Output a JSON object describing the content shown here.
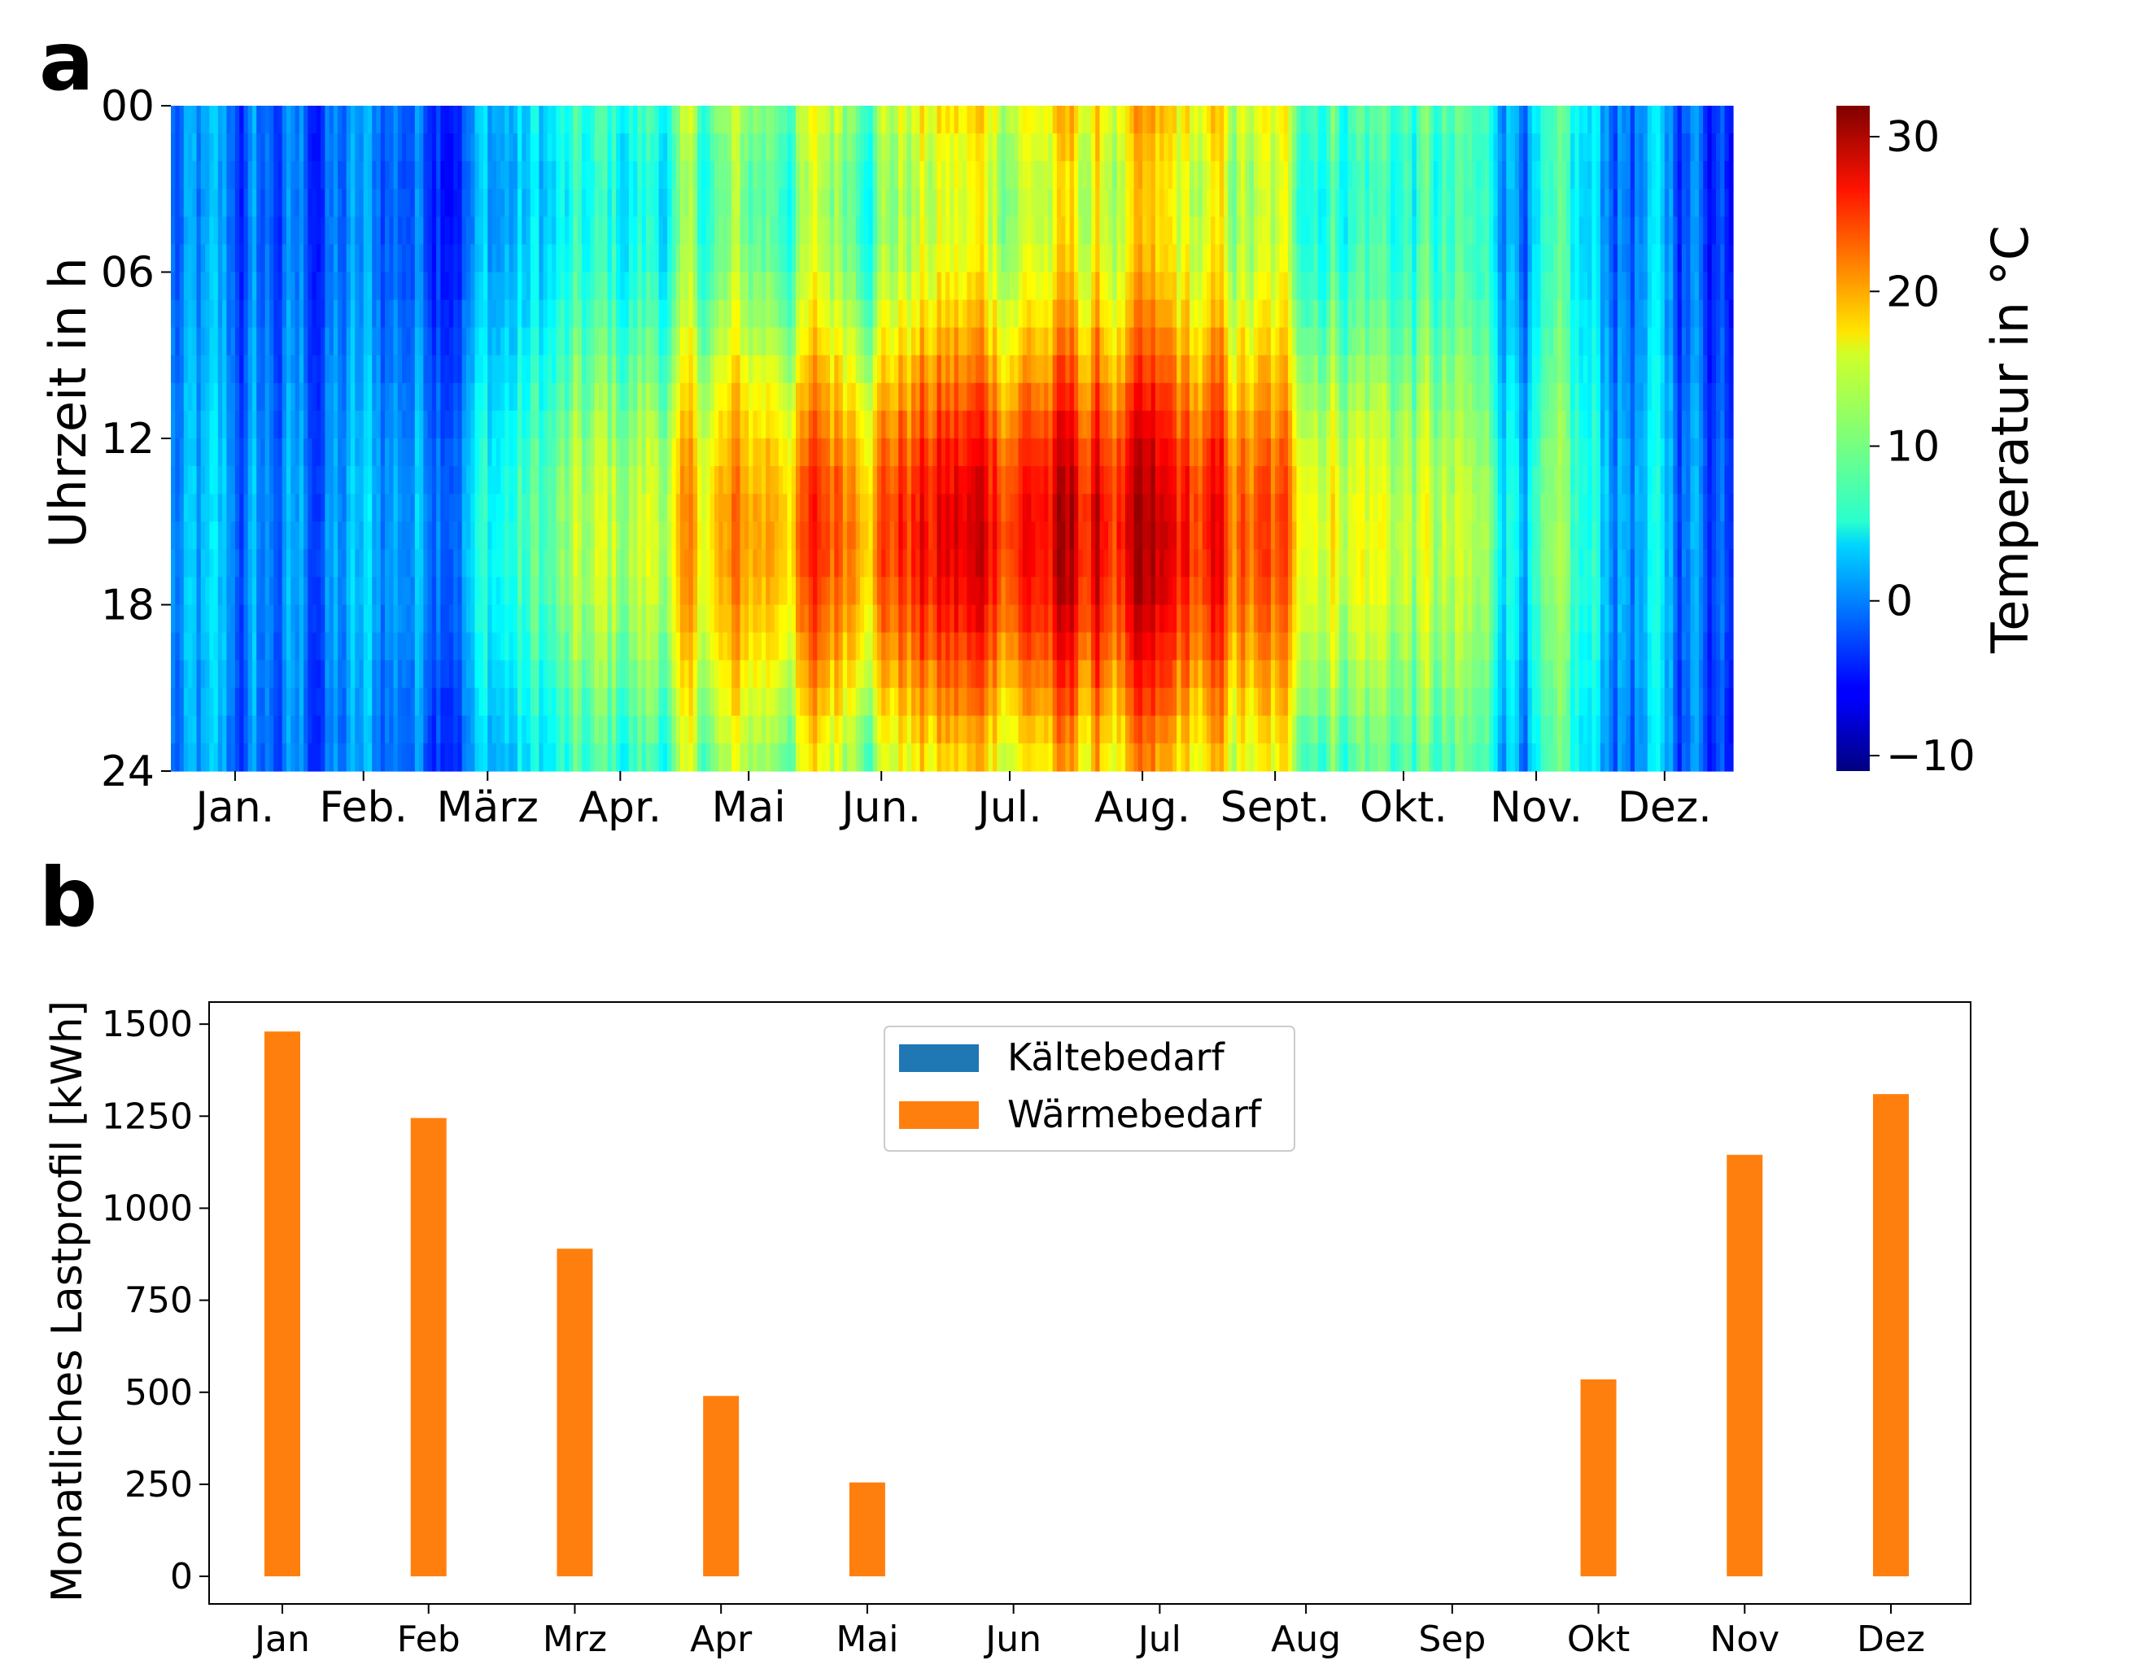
{
  "chart_data": [
    {
      "type": "heatmap",
      "panel_label": "a",
      "ylabel": "Uhrzeit in h",
      "colorbar_label": "Temperatur in °C",
      "colormap": "jet",
      "colorbar_range": [
        -11,
        32
      ],
      "colorbar_ticks": [
        "−10",
        "0",
        "10",
        "20",
        "30"
      ],
      "colorbar_tick_values": [
        -10,
        0,
        10,
        20,
        30
      ],
      "y_ticks": [
        "00",
        "06",
        "12",
        "18",
        "24"
      ],
      "y_tick_values": [
        0,
        6,
        12,
        18,
        24
      ],
      "x_ticks": [
        "Jan.",
        "Feb.",
        "März",
        "Apr.",
        "Mai",
        "Jun.",
        "Jul.",
        "Aug.",
        "Sept.",
        "Okt.",
        "Nov.",
        "Dez."
      ],
      "x_tick_days": [
        15,
        45,
        74,
        105,
        135,
        166,
        196,
        227,
        258,
        288,
        319,
        349
      ],
      "days": 365,
      "hours": 24
    },
    {
      "type": "bar",
      "panel_label": "b",
      "ylabel": "Monatliches Lastprofil [kWh]",
      "categories": [
        "Jan",
        "Feb",
        "Mrz",
        "Apr",
        "Mai",
        "Jun",
        "Jul",
        "Aug",
        "Sep",
        "Okt",
        "Nov",
        "Dez"
      ],
      "series": [
        {
          "name": "Kältebedarf",
          "color": "#1f77b4",
          "values": [
            0,
            0,
            0,
            0,
            0,
            0,
            0,
            0,
            0,
            0,
            0,
            0
          ]
        },
        {
          "name": "Wärmebedarf",
          "color": "#ff7f0e",
          "values": [
            1480,
            1245,
            890,
            490,
            255,
            0,
            0,
            0,
            0,
            535,
            1145,
            1310
          ]
        }
      ],
      "ylim": [
        -75,
        1560
      ],
      "y_ticks": [
        0,
        250,
        500,
        750,
        1000,
        1250,
        1500
      ],
      "legend_position": "upper-center",
      "grid": false
    }
  ]
}
